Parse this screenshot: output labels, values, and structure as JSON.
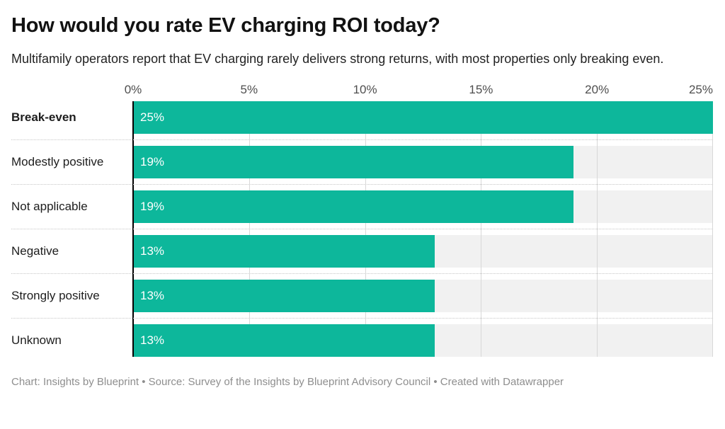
{
  "header": {
    "title": "How would you rate EV charging ROI today?",
    "subtitle": "Multifamily operators report that EV charging rarely delivers strong returns, with most properties only breaking even."
  },
  "footer": {
    "text": "Chart: Insights by Blueprint • Source: Survey of the Insights by Blueprint Advisory Council • Created with Datawrapper"
  },
  "chart_data": {
    "type": "bar",
    "orientation": "horizontal",
    "title": "How would you rate EV charging ROI today?",
    "subtitle": "Multifamily operators report that EV charging rarely delivers strong returns, with most properties only breaking even.",
    "categories": [
      "Break-even",
      "Modestly positive",
      "Not applicable",
      "Negative",
      "Strongly positive",
      "Unknown"
    ],
    "values": [
      25,
      19,
      19,
      13,
      13,
      13
    ],
    "value_labels": [
      "25%",
      "19%",
      "19%",
      "13%",
      "13%",
      "13%"
    ],
    "emphasized_category": "Break-even",
    "xlabel": "",
    "ylabel": "",
    "x_ticks": [
      "0%",
      "5%",
      "10%",
      "15%",
      "20%",
      "25%"
    ],
    "x_tick_values": [
      0,
      5,
      10,
      15,
      20,
      25
    ],
    "xlim": [
      0,
      25
    ],
    "grid": true,
    "legend": "none",
    "colors": {
      "bar": "#0db79b",
      "track": "#f1f1f1",
      "gridline": "#d8d8d8",
      "axis_line": "#000000",
      "separator": "#c6c6c6",
      "value_label": "#ffffff"
    }
  }
}
